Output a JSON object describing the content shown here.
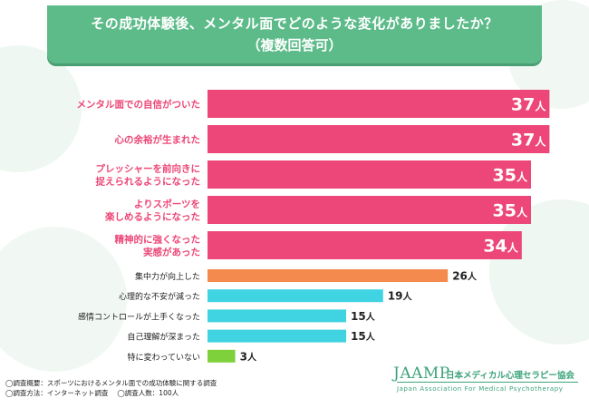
{
  "title": {
    "line1": "その成功体験後、メンタル面でどのような変化がありましたか？",
    "line2": "（複数回答可）"
  },
  "colors": {
    "title_bg": "#5dbb8a",
    "pink": "#ec4778",
    "orange": "#f58a4e",
    "cyan": "#40d3e2",
    "green": "#7fd13b"
  },
  "chart_data": {
    "type": "bar",
    "orientation": "horizontal",
    "unit": "人",
    "categories": [
      [
        "メンタル面での自信がついた"
      ],
      [
        "心の余裕が生まれた"
      ],
      [
        "プレッシャーを前向きに",
        "捉えられるようになった"
      ],
      [
        "よりスポーツを",
        "楽しめるようになった"
      ],
      [
        "精神的に強くなった",
        "実感があった"
      ],
      [
        "集中力が向上した"
      ],
      [
        "心理的な不安が減った"
      ],
      [
        "感情コントロールが上手くなった"
      ],
      [
        "自己理解が深まった"
      ],
      [
        "特に変わっていない"
      ]
    ],
    "values": [
      37,
      37,
      35,
      35,
      34,
      26,
      19,
      15,
      15,
      3
    ],
    "bar_colors": [
      "#ec4778",
      "#ec4778",
      "#ec4778",
      "#ec4778",
      "#ec4778",
      "#f58a4e",
      "#40d3e2",
      "#40d3e2",
      "#40d3e2",
      "#7fd13b"
    ],
    "highlighted_count": 5,
    "legend": "none",
    "grid": false
  },
  "footer": {
    "survey_summary": "◯調査概要：スポーツにおけるメンタル面での成功体験に関する調査",
    "survey_method": "◯調査方法：インターネット調査",
    "respondents": "◯調査人数：100人"
  },
  "logo": {
    "brand": "JAAMP",
    "org_jp": "日本メディカル心理セラピー協会",
    "org_en": "Japan Association For Medical Psychotherapy"
  }
}
